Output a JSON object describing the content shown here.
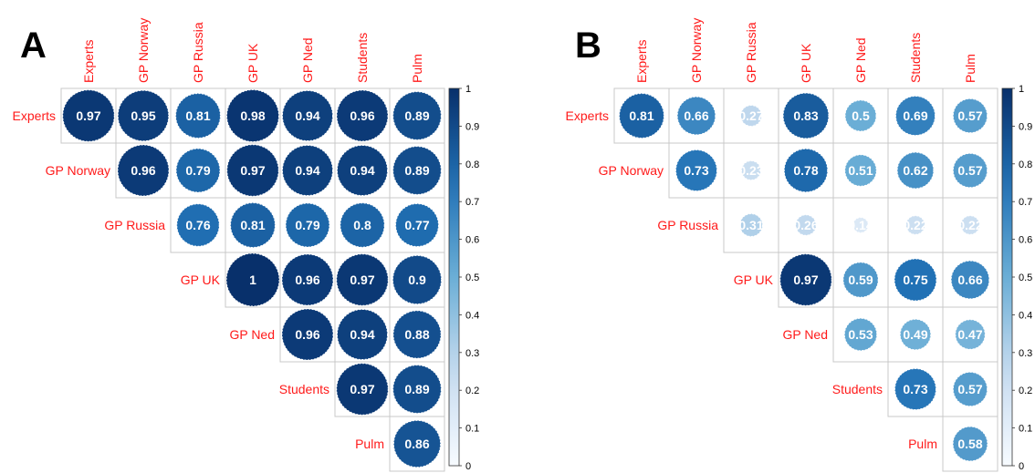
{
  "chart_data": [
    {
      "type": "heatmap",
      "panel": "A",
      "variables": [
        "Experts",
        "GP Norway",
        "GP Russia",
        "GP UK",
        "GP Ned",
        "Students",
        "Pulm"
      ],
      "matrix": [
        [
          0.97,
          0.95,
          0.81,
          0.98,
          0.94,
          0.96,
          0.89
        ],
        [
          null,
          0.96,
          0.79,
          0.97,
          0.94,
          0.94,
          0.89
        ],
        [
          null,
          null,
          0.76,
          0.81,
          0.79,
          0.8,
          0.77
        ],
        [
          null,
          null,
          null,
          1,
          0.96,
          0.97,
          0.9
        ],
        [
          null,
          null,
          null,
          null,
          0.96,
          0.94,
          0.88
        ],
        [
          null,
          null,
          null,
          null,
          null,
          0.97,
          0.89
        ],
        [
          null,
          null,
          null,
          null,
          null,
          null,
          0.86
        ]
      ],
      "colorbar": {
        "range": [
          0,
          1
        ],
        "ticks": [
          "0",
          "0.1",
          "0.2",
          "0.3",
          "0.4",
          "0.5",
          "0.6",
          "0.7",
          "0.8",
          "0.9",
          "1"
        ]
      }
    },
    {
      "type": "heatmap",
      "panel": "B",
      "variables": [
        "Experts",
        "GP Norway",
        "GP Russia",
        "GP UK",
        "GP Ned",
        "Students",
        "Pulm"
      ],
      "matrix": [
        [
          0.81,
          0.66,
          0.27,
          0.83,
          0.5,
          0.69,
          0.57
        ],
        [
          null,
          0.73,
          0.23,
          0.78,
          0.51,
          0.62,
          0.57
        ],
        [
          null,
          null,
          0.31,
          0.26,
          0.14,
          0.22,
          0.22
        ],
        [
          null,
          null,
          null,
          0.97,
          0.59,
          0.75,
          0.66
        ],
        [
          null,
          null,
          null,
          null,
          0.53,
          0.49,
          0.47
        ],
        [
          null,
          null,
          null,
          null,
          null,
          0.73,
          0.57
        ],
        [
          null,
          null,
          null,
          null,
          null,
          null,
          0.58
        ]
      ],
      "colorbar": {
        "range": [
          0,
          1
        ],
        "ticks": [
          "0",
          "0.1",
          "0.2",
          "0.3",
          "0.4",
          "0.5",
          "0.6",
          "0.7",
          "0.8",
          "0.9",
          "1"
        ]
      }
    }
  ],
  "colors": {
    "label": "#ff1a1a",
    "high": "#08306b",
    "low": "#f7fbff",
    "grid": "#c8c8c8"
  }
}
